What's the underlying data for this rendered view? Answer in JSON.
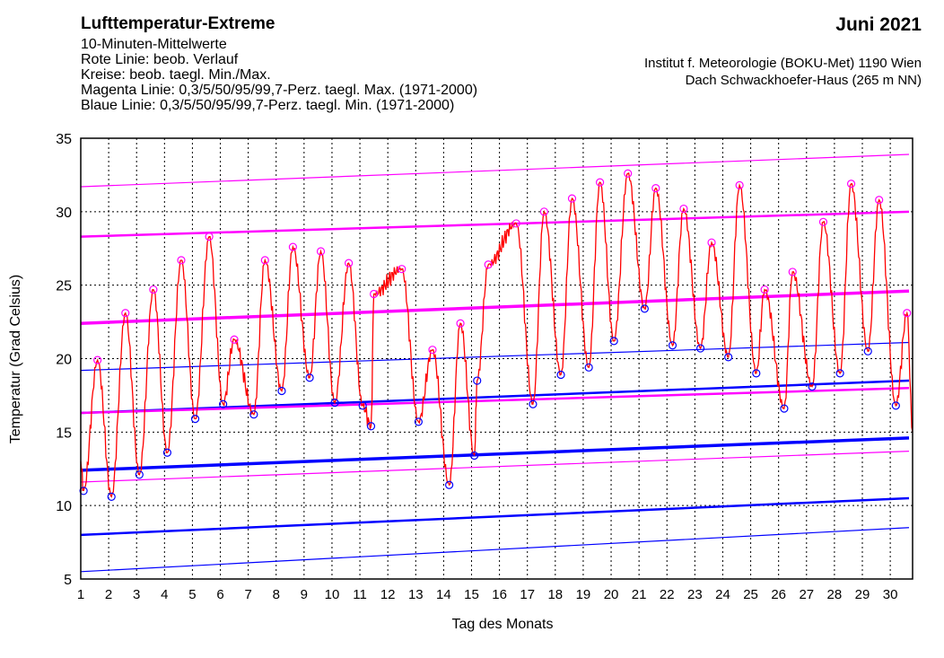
{
  "header": {
    "title": "Lufttemperatur-Extreme",
    "lines": [
      "10-Minuten-Mittelwerte",
      "Rote Linie: beob. Verlauf",
      "Kreise: beob. taegl. Min./Max.",
      "Magenta Linie: 0,3/5/50/95/99,7-Perz. taegl. Max. (1971-2000)",
      "Blaue Linie: 0,3/5/50/95/99,7-Perz. taegl. Min. (1971-2000)"
    ],
    "month": "Juni 2021",
    "institute": "Institut f. Meteorologie (BOKU-Met) 1190 Wien",
    "location": "Dach Schwackhoefer-Haus (265 m NN)"
  },
  "chart_data": {
    "type": "line",
    "xlabel": "Tag des Monats",
    "ylabel": "Temperatur (Grad Celsius)",
    "xlim": [
      1,
      30.8
    ],
    "ylim": [
      5,
      35
    ],
    "xticks": [
      1,
      2,
      3,
      4,
      5,
      6,
      7,
      8,
      9,
      10,
      11,
      12,
      13,
      14,
      15,
      16,
      17,
      18,
      19,
      20,
      21,
      22,
      23,
      24,
      25,
      26,
      27,
      28,
      29,
      30
    ],
    "yticks": [
      5,
      10,
      15,
      20,
      25,
      30,
      35
    ],
    "grid": true,
    "colors": {
      "observed": "#ff0000",
      "max_percentiles": "#ff00ff",
      "min_percentiles": "#0000ff",
      "grid": "#000000"
    },
    "daily_max": [
      {
        "x": 1.6,
        "y": 19.9
      },
      {
        "x": 2.6,
        "y": 23.1
      },
      {
        "x": 3.6,
        "y": 24.7
      },
      {
        "x": 4.6,
        "y": 26.7
      },
      {
        "x": 5.6,
        "y": 28.3
      },
      {
        "x": 6.5,
        "y": 21.3
      },
      {
        "x": 7.6,
        "y": 26.7
      },
      {
        "x": 8.6,
        "y": 27.6
      },
      {
        "x": 9.6,
        "y": 27.3
      },
      {
        "x": 10.6,
        "y": 26.5
      },
      {
        "x": 11.5,
        "y": 24.4
      },
      {
        "x": 12.5,
        "y": 26.1
      },
      {
        "x": 13.6,
        "y": 20.6
      },
      {
        "x": 14.6,
        "y": 22.4
      },
      {
        "x": 15.6,
        "y": 26.4
      },
      {
        "x": 16.6,
        "y": 29.2
      },
      {
        "x": 17.6,
        "y": 30.0
      },
      {
        "x": 18.6,
        "y": 30.9
      },
      {
        "x": 19.6,
        "y": 32.0
      },
      {
        "x": 20.6,
        "y": 32.6
      },
      {
        "x": 21.6,
        "y": 31.6
      },
      {
        "x": 22.6,
        "y": 30.2
      },
      {
        "x": 23.6,
        "y": 27.9
      },
      {
        "x": 24.6,
        "y": 31.8
      },
      {
        "x": 25.5,
        "y": 24.7
      },
      {
        "x": 26.5,
        "y": 25.9
      },
      {
        "x": 27.6,
        "y": 29.3
      },
      {
        "x": 28.6,
        "y": 31.9
      },
      {
        "x": 29.6,
        "y": 30.8
      },
      {
        "x": 30.6,
        "y": 23.1
      }
    ],
    "daily_min": [
      {
        "x": 1.1,
        "y": 11.0
      },
      {
        "x": 2.1,
        "y": 10.6
      },
      {
        "x": 3.1,
        "y": 12.1
      },
      {
        "x": 4.1,
        "y": 13.6
      },
      {
        "x": 5.1,
        "y": 15.9
      },
      {
        "x": 6.1,
        "y": 16.9
      },
      {
        "x": 7.2,
        "y": 16.2
      },
      {
        "x": 8.2,
        "y": 17.8
      },
      {
        "x": 9.2,
        "y": 18.7
      },
      {
        "x": 10.1,
        "y": 17.0
      },
      {
        "x": 11.1,
        "y": 16.8
      },
      {
        "x": 11.4,
        "y": 15.4
      },
      {
        "x": 13.1,
        "y": 15.7
      },
      {
        "x": 14.2,
        "y": 11.4
      },
      {
        "x": 15.1,
        "y": 13.4
      },
      {
        "x": 15.2,
        "y": 18.5
      },
      {
        "x": 17.2,
        "y": 16.9
      },
      {
        "x": 18.2,
        "y": 18.9
      },
      {
        "x": 19.2,
        "y": 19.4
      },
      {
        "x": 20.1,
        "y": 21.2
      },
      {
        "x": 21.2,
        "y": 23.4
      },
      {
        "x": 22.2,
        "y": 20.9
      },
      {
        "x": 23.2,
        "y": 20.7
      },
      {
        "x": 24.2,
        "y": 20.1
      },
      {
        "x": 25.2,
        "y": 19.0
      },
      {
        "x": 26.2,
        "y": 16.6
      },
      {
        "x": 27.2,
        "y": 18.1
      },
      {
        "x": 28.2,
        "y": 19.0
      },
      {
        "x": 29.2,
        "y": 20.5
      },
      {
        "x": 30.2,
        "y": 16.8
      }
    ],
    "observed_end": {
      "x": 30.8,
      "y": 15.0
    },
    "percentiles_max": [
      {
        "name": "0,3",
        "start": 11.6,
        "end": 13.7
      },
      {
        "name": "5",
        "start": 16.3,
        "end": 18.0
      },
      {
        "name": "50",
        "start": 22.4,
        "end": 24.6
      },
      {
        "name": "95",
        "start": 28.3,
        "end": 30.0
      },
      {
        "name": "99,7",
        "start": 31.7,
        "end": 33.9
      }
    ],
    "percentiles_min": [
      {
        "name": "0,3",
        "start": 5.5,
        "end": 8.5
      },
      {
        "name": "5",
        "start": 8.0,
        "end": 10.5
      },
      {
        "name": "50",
        "start": 12.4,
        "end": 14.6
      },
      {
        "name": "95",
        "start": 16.3,
        "end": 18.5
      },
      {
        "name": "99,7",
        "start": 19.2,
        "end": 21.1
      }
    ]
  }
}
